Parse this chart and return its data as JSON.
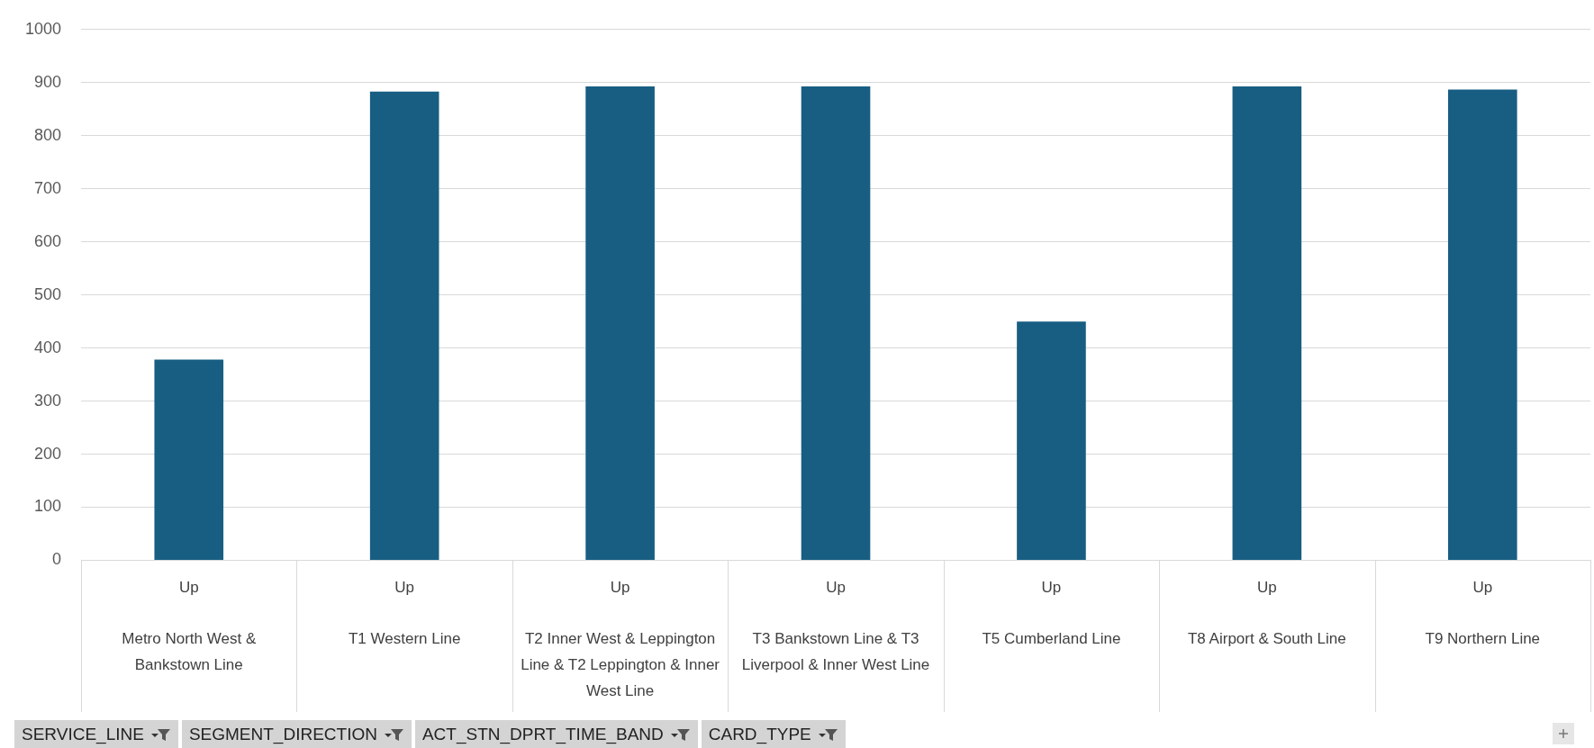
{
  "chart_data": {
    "type": "bar",
    "categories": [
      "Up\nMetro North West & Bankstown Line",
      "Up\nT1 Western Line",
      "Up\nT2 Inner West & Leppington Line & T2 Leppington & Inner West Line",
      "Up\nT3 Bankstown Line & T3 Liverpool & Inner West Line",
      "Up\nT5 Cumberland Line",
      "Up\nT8 Airport & South Line",
      "Up\nT9 Northern Line"
    ],
    "values": [
      378,
      883,
      893,
      893,
      450,
      893,
      887
    ],
    "color": "#175e82",
    "ylim": [
      0,
      1000
    ],
    "yticks": [
      0,
      100,
      200,
      300,
      400,
      500,
      600,
      700,
      800,
      900,
      1000
    ],
    "grid": "y",
    "legend": false,
    "annotations": [
      "SERVICE_LINE",
      "SEGMENT_DIRECTION",
      "ACT_STN_DPRT_TIME_BAND",
      "CARD_TYPE"
    ]
  }
}
